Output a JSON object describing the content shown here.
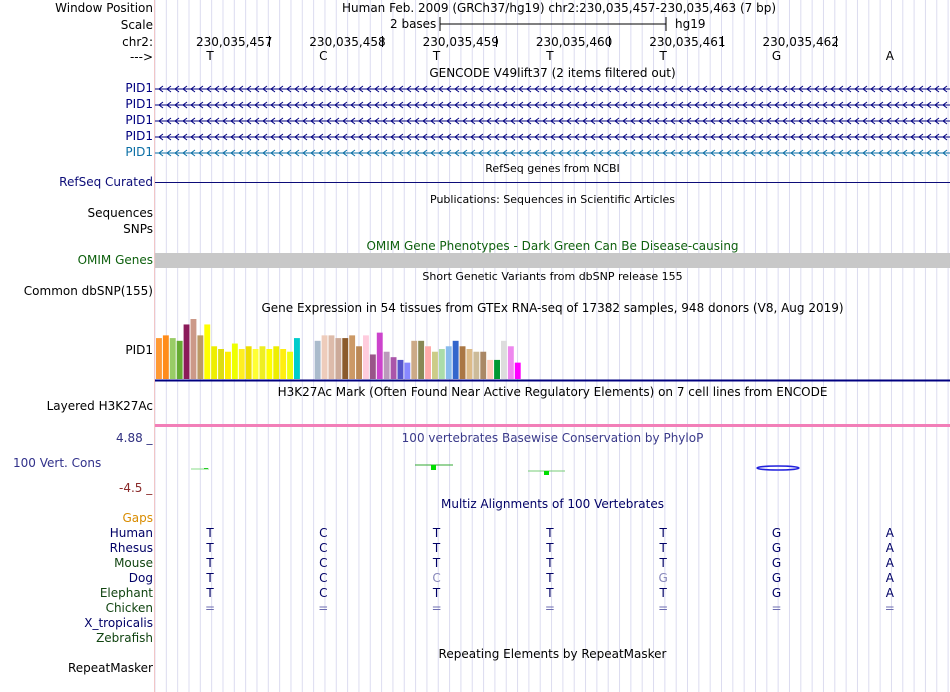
{
  "header": {
    "window_position_label": "Window Position",
    "window_position_value": "Human Feb. 2009 (GRCh37/hg19)   chr2:230,035,457-230,035,463 (7 bp)",
    "scale_label": "Scale",
    "scale_value": "2 bases",
    "scale_assembly": "hg19",
    "chrom_label": "chr2:",
    "strand_label": "--->",
    "positions": [
      "230,035,457",
      "230,035,458",
      "230,035,459",
      "230,035,460",
      "230,035,461",
      "230,035,462"
    ],
    "bases": [
      "T",
      "C",
      "T",
      "T",
      "T",
      "G",
      "A"
    ]
  },
  "tracks": {
    "gencode": {
      "title": "GENCODE V49lift37 (2 items filtered out)",
      "items": [
        {
          "label": "PID1",
          "color": "#000080"
        },
        {
          "label": "PID1",
          "color": "#000080"
        },
        {
          "label": "PID1",
          "color": "#000080"
        },
        {
          "label": "PID1",
          "color": "#000080"
        },
        {
          "label": "PID1",
          "color": "#0a6ea5"
        }
      ]
    },
    "refseq": {
      "title": "RefSeq genes from NCBI",
      "label": "RefSeq Curated",
      "color": "#0c0c78"
    },
    "publications": {
      "title": "Publications: Sequences in Scientific Articles",
      "labels": [
        "Sequences",
        "SNPs"
      ]
    },
    "omim": {
      "title": "OMIM Gene Phenotypes - Dark Green Can Be Disease-causing",
      "label": "OMIM Genes",
      "color": "#0e600e"
    },
    "dbsnp": {
      "title": "Short Genetic Variants from dbSNP release 155",
      "label": "Common dbSNP(155)"
    },
    "gtex": {
      "title": "Gene Expression in 54 tissues from GTEx RNA-seq of 17382 samples, 948 donors (V8, Aug 2019)",
      "label": "PID1",
      "chart_data": {
        "type": "bar",
        "series": [
          {
            "name": "PID1 expression",
            "values": [
              15,
              16,
              15,
              14,
              20,
              22,
              16,
              20,
              12,
              11,
              10,
              13,
              11,
              12,
              11,
              12,
              11,
              12,
              11,
              10,
              15,
              0,
              0,
              14,
              16,
              16,
              15,
              15,
              16,
              12,
              16,
              9,
              17,
              10,
              8,
              7,
              6,
              14,
              14,
              12,
              10,
              11,
              12,
              14,
              12,
              11,
              10,
              10,
              7,
              7,
              14,
              12,
              6,
              6
            ],
            "colors": [
              "#ff9933",
              "#ff8c1a",
              "#99cc66",
              "#66aa33",
              "#8b1a5a",
              "#cc9988",
              "#bb9966",
              "#ffff00",
              "#eeee00",
              "#dddd11",
              "#ffee00",
              "#eeff00",
              "#ffee22",
              "#eedd00",
              "#ffff33",
              "#eeee22",
              "#ffff00",
              "#eeee00",
              "#ffee11",
              "#eeff11",
              "#00cccc",
              "#ffffff",
              "#ffffff",
              "#aabbcc",
              "#eeccbb",
              "#ddbbaa",
              "#ccaa99",
              "#8b5a2b",
              "#cc9966",
              "#bb8855",
              "#ffccdd",
              "#995588",
              "#cc44cc",
              "#bb99bb",
              "#aa55aa",
              "#5555cc",
              "#8888ff",
              "#ccaa88",
              "#888855",
              "#ffaaaa",
              "#cccc88",
              "#aaddaa",
              "#88bbee",
              "#3366cc",
              "#aa7744",
              "#ddbb88",
              "#ccbb99",
              "#aa8866",
              "#ffccbb",
              "#009933",
              "#dddddd",
              "#ee88ee",
              "#ff00ff",
              "#ffffff"
            ]
          }
        ]
      }
    },
    "h3k27ac": {
      "title": "H3K27Ac Mark (Often Found Near Active Regulatory Elements) on 7 cell lines from ENCODE",
      "label": "Layered H3K27Ac"
    },
    "conservation": {
      "title": "100 vertebrates Basewise Conservation by PhyloP",
      "label": "100 Vert. Cons",
      "max_label": "4.88 _",
      "min_label": "-4.5 _"
    },
    "multiz": {
      "title": "Multiz Alignments of 100 Vertebrates",
      "gaps_label": "Gaps",
      "species": [
        {
          "name": "Human",
          "color": "#000066",
          "bases": [
            "T",
            "C",
            "T",
            "T",
            "T",
            "G",
            "A"
          ]
        },
        {
          "name": "Rhesus",
          "color": "#000066",
          "bases": [
            "T",
            "C",
            "T",
            "T",
            "T",
            "G",
            "A"
          ]
        },
        {
          "name": "Mouse",
          "color": "#114411",
          "bases": [
            "T",
            "C",
            "T",
            "T",
            "T",
            "G",
            "A"
          ]
        },
        {
          "name": "Dog",
          "color": "#000066",
          "bases": [
            "T",
            "C",
            "C",
            "T",
            "G",
            "G",
            "A"
          ]
        },
        {
          "name": "Elephant",
          "color": "#114411",
          "bases": [
            "T",
            "C",
            "T",
            "T",
            "T",
            "G",
            "A"
          ]
        },
        {
          "name": "Chicken",
          "color": "#114411",
          "bases": [
            "=",
            "=",
            "=",
            "=",
            "=",
            "=",
            "="
          ]
        },
        {
          "name": "X_tropicalis",
          "color": "#000066",
          "bases": []
        },
        {
          "name": "Zebrafish",
          "color": "#114411",
          "bases": []
        }
      ]
    },
    "repeatmasker": {
      "title": "Repeating Elements by RepeatMasker",
      "label": "RepeatMasker"
    }
  }
}
